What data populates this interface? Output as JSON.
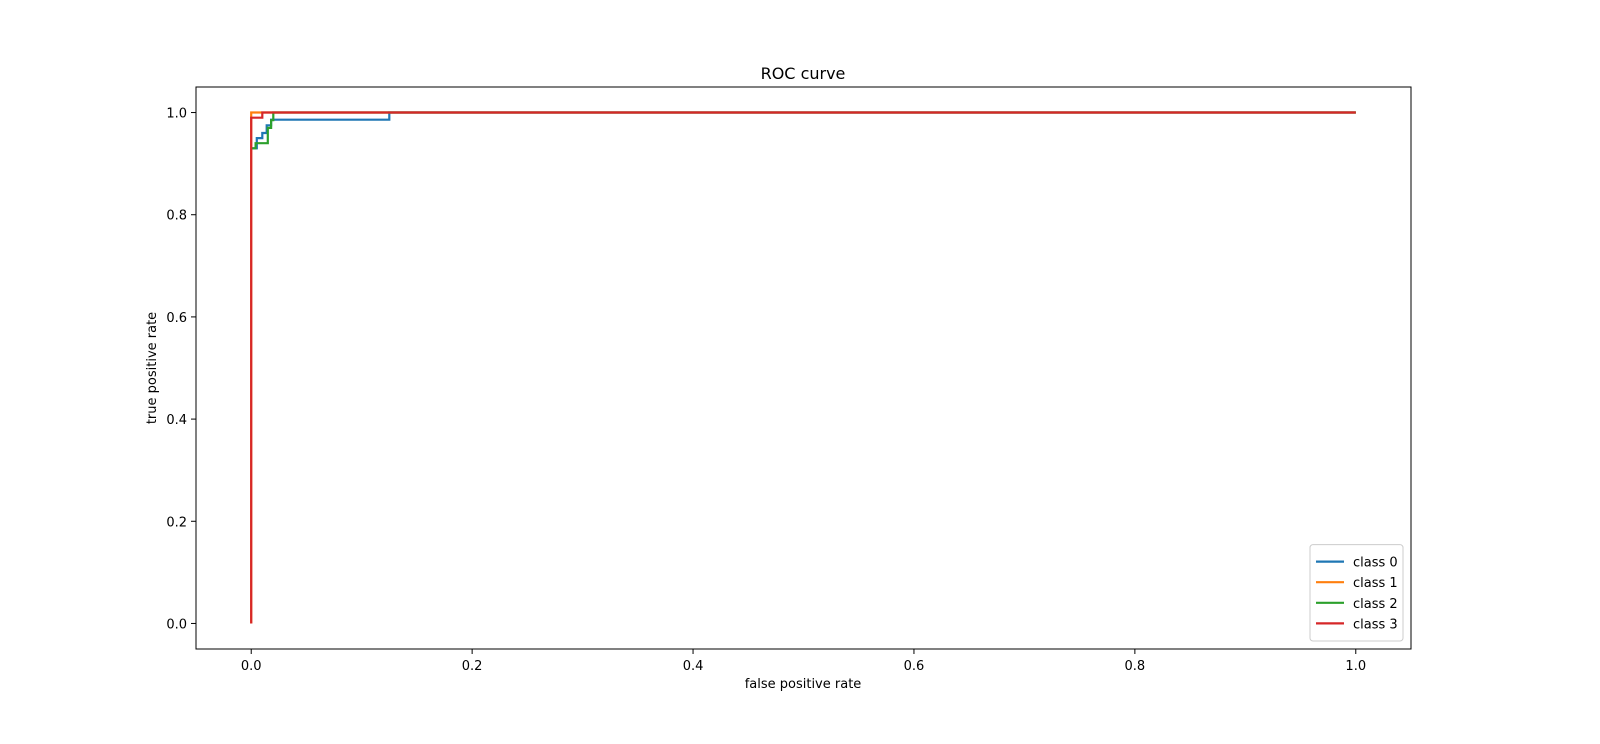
{
  "chart_data": {
    "type": "line",
    "title": "ROC curve",
    "xlabel": "false positive rate",
    "ylabel": "true positive rate",
    "xlim": [
      -0.05,
      1.05
    ],
    "ylim": [
      -0.05,
      1.05
    ],
    "xticks": [
      0.0,
      0.2,
      0.4,
      0.6,
      0.8,
      1.0
    ],
    "yticks": [
      0.0,
      0.2,
      0.4,
      0.6,
      0.8,
      1.0
    ],
    "xtick_labels": [
      "0.0",
      "0.2",
      "0.4",
      "0.6",
      "0.8",
      "1.0"
    ],
    "ytick_labels": [
      "0.0",
      "0.2",
      "0.4",
      "0.6",
      "0.8",
      "1.0"
    ],
    "grid": false,
    "legend": {
      "placement": "lower right"
    },
    "series": [
      {
        "name": "class 0",
        "color": "#1f77b4",
        "x": [
          0.0,
          0.005,
          0.005,
          0.01,
          0.01,
          0.014,
          0.014,
          0.018,
          0.018,
          0.125,
          0.125,
          1.0
        ],
        "y": [
          0.93,
          0.93,
          0.95,
          0.95,
          0.96,
          0.96,
          0.975,
          0.975,
          0.986,
          0.986,
          1.0,
          1.0
        ]
      },
      {
        "name": "class 1",
        "color": "#ff7f0e",
        "x": [
          0.0,
          0.0,
          1.0
        ],
        "y": [
          0.0,
          1.0,
          1.0
        ]
      },
      {
        "name": "class 2",
        "color": "#2ca02c",
        "x": [
          0.0,
          0.004,
          0.004,
          0.015,
          0.015,
          0.018,
          0.018,
          0.02,
          0.02,
          1.0
        ],
        "y": [
          0.93,
          0.93,
          0.94,
          0.94,
          0.97,
          0.97,
          0.985,
          0.985,
          1.0,
          1.0
        ]
      },
      {
        "name": "class 3",
        "color": "#d62728",
        "x": [
          0.0,
          0.0,
          0.01,
          0.01,
          1.0
        ],
        "y": [
          0.0,
          0.99,
          0.99,
          1.0,
          1.0
        ]
      }
    ]
  }
}
